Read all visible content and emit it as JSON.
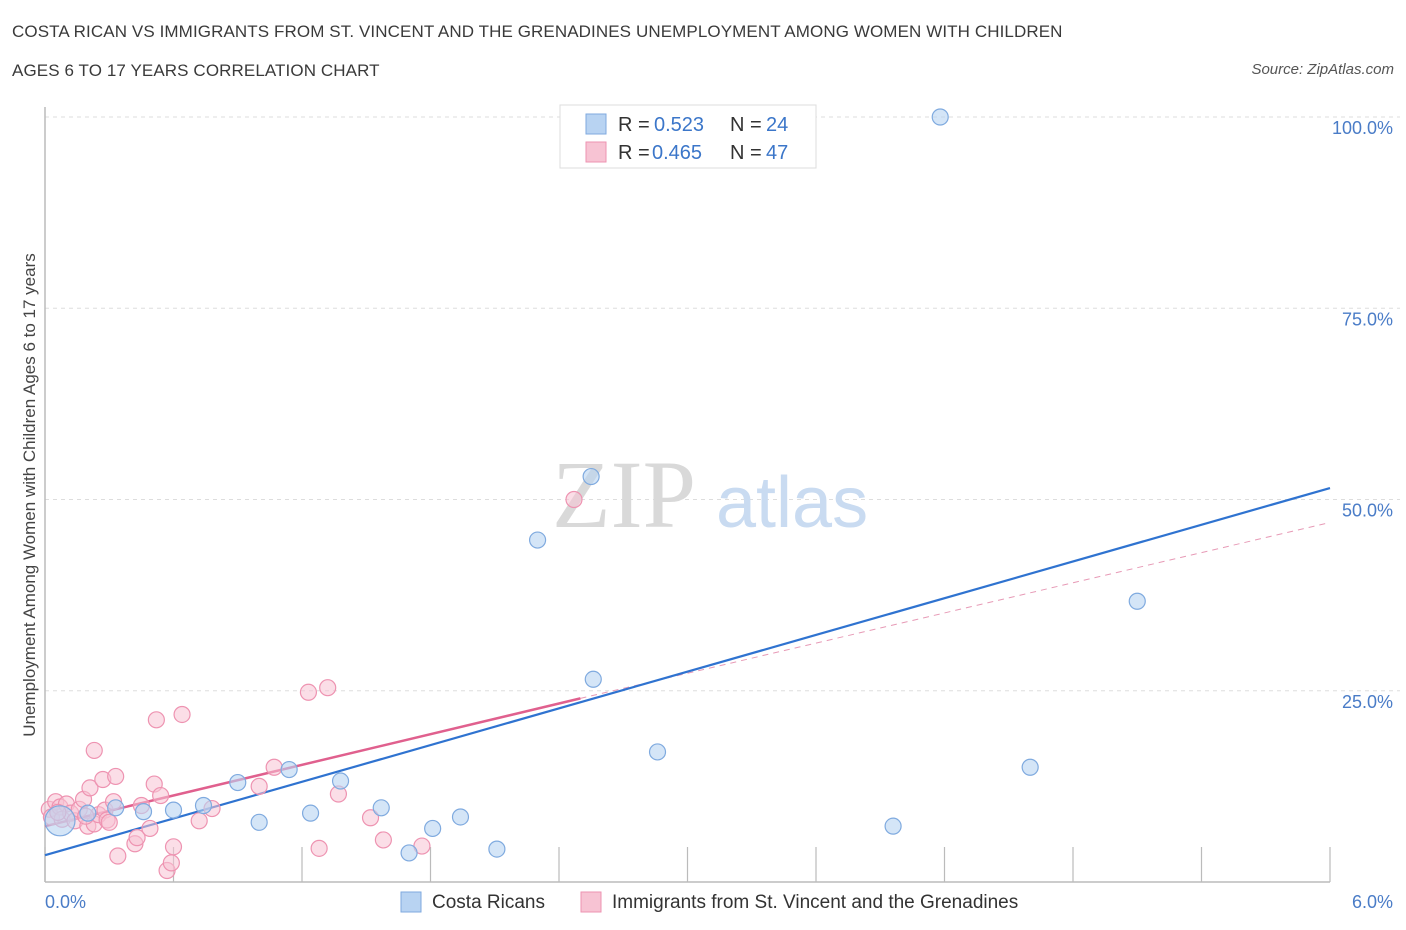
{
  "header": {
    "title_line1": "COSTA RICAN VS IMMIGRANTS FROM ST. VINCENT AND THE GRENADINES UNEMPLOYMENT AMONG WOMEN WITH CHILDREN",
    "title_line2": "AGES 6 TO 17 YEARS CORRELATION CHART",
    "source": "Source: ZipAtlas.com"
  },
  "watermark": {
    "zip": "ZIP",
    "atlas": "atlas"
  },
  "stats_legend": {
    "r_label": "R =",
    "n_label": "N =",
    "rows": [
      {
        "r": "0.523",
        "n": "24"
      },
      {
        "r": "0.465",
        "n": "47"
      }
    ]
  },
  "colors": {
    "blue_fill": "#b8d3f2",
    "blue_stroke": "#7faadf",
    "blue_line": "#2f73d0",
    "pink_fill": "#f7c3d3",
    "pink_stroke": "#ee93b1",
    "pink_line": "#e0608e",
    "grid": "#dddddd",
    "axis": "#bbbbbb"
  },
  "chart_data": {
    "type": "scatter",
    "title": "COSTA RICAN VS IMMIGRANTS FROM ST. VINCENT AND THE GRENADINES UNEMPLOYMENT AMONG WOMEN WITH CHILDREN AGES 6 TO 17 YEARS CORRELATION CHART",
    "xlabel": "",
    "ylabel": "Unemployment Among Women with Children Ages 6 to 17 years",
    "xlim": [
      0,
      6
    ],
    "ylim": [
      0,
      100
    ],
    "x_tick_labels": [
      "0.0%",
      "6.0%"
    ],
    "y_ticks": [
      25,
      50,
      75,
      100
    ],
    "y_tick_labels": [
      "25.0%",
      "50.0%",
      "75.0%",
      "100.0%"
    ],
    "grid": true,
    "legend_position": "bottom",
    "series": [
      {
        "name": "Costa Ricans",
        "color": "#7faadf",
        "r": 0.523,
        "n": 24,
        "trend": {
          "x0": 0,
          "y0": 3.5,
          "x1": 6,
          "y1": 51.5
        },
        "points": [
          {
            "x": 0.07,
            "y": 8,
            "big": true
          },
          {
            "x": 0.2,
            "y": 9
          },
          {
            "x": 0.33,
            "y": 9.7
          },
          {
            "x": 0.46,
            "y": 9.2
          },
          {
            "x": 0.6,
            "y": 9.4
          },
          {
            "x": 0.74,
            "y": 10
          },
          {
            "x": 0.9,
            "y": 13
          },
          {
            "x": 1.0,
            "y": 7.8
          },
          {
            "x": 1.14,
            "y": 14.7
          },
          {
            "x": 1.24,
            "y": 9
          },
          {
            "x": 1.38,
            "y": 13.2
          },
          {
            "x": 1.57,
            "y": 9.7
          },
          {
            "x": 1.7,
            "y": 3.8
          },
          {
            "x": 1.81,
            "y": 7
          },
          {
            "x": 1.94,
            "y": 8.5
          },
          {
            "x": 2.11,
            "y": 4.3
          },
          {
            "x": 2.3,
            "y": 44.7
          },
          {
            "x": 2.55,
            "y": 53
          },
          {
            "x": 2.56,
            "y": 26.5
          },
          {
            "x": 2.86,
            "y": 17
          },
          {
            "x": 3.96,
            "y": 7.3
          },
          {
            "x": 4.18,
            "y": 100
          },
          {
            "x": 4.6,
            "y": 15
          },
          {
            "x": 5.1,
            "y": 36.7
          }
        ]
      },
      {
        "name": "Immigrants from St. Vincent and the Grenadines",
        "color": "#ee93b1",
        "r": 0.465,
        "n": 47,
        "trend": {
          "x0": 0,
          "y0": 7.3,
          "x1": 2.5,
          "y1": 24
        },
        "trend_ext": {
          "x0": 2.5,
          "y0": 24,
          "x1": 6,
          "y1": 47
        },
        "points": [
          {
            "x": 0.02,
            "y": 9.5
          },
          {
            "x": 0.03,
            "y": 8.5
          },
          {
            "x": 0.05,
            "y": 10.5
          },
          {
            "x": 0.07,
            "y": 9.8
          },
          {
            "x": 0.08,
            "y": 8.2
          },
          {
            "x": 0.1,
            "y": 10.2
          },
          {
            "x": 0.12,
            "y": 9
          },
          {
            "x": 0.14,
            "y": 8
          },
          {
            "x": 0.16,
            "y": 9.5
          },
          {
            "x": 0.18,
            "y": 10.8
          },
          {
            "x": 0.2,
            "y": 7.3
          },
          {
            "x": 0.21,
            "y": 12.3
          },
          {
            "x": 0.23,
            "y": 7.6
          },
          {
            "x": 0.25,
            "y": 8.8
          },
          {
            "x": 0.27,
            "y": 13.4
          },
          {
            "x": 0.28,
            "y": 9.4
          },
          {
            "x": 0.29,
            "y": 8.1
          },
          {
            "x": 0.3,
            "y": 7.8
          },
          {
            "x": 0.32,
            "y": 10.5
          },
          {
            "x": 0.23,
            "y": 17.2
          },
          {
            "x": 0.33,
            "y": 13.8
          },
          {
            "x": 0.34,
            "y": 3.4
          },
          {
            "x": 0.42,
            "y": 5
          },
          {
            "x": 0.43,
            "y": 5.8
          },
          {
            "x": 0.45,
            "y": 10
          },
          {
            "x": 0.49,
            "y": 7
          },
          {
            "x": 0.51,
            "y": 12.8
          },
          {
            "x": 0.54,
            "y": 11.3
          },
          {
            "x": 0.52,
            "y": 21.2
          },
          {
            "x": 0.57,
            "y": 1.5
          },
          {
            "x": 0.59,
            "y": 2.5
          },
          {
            "x": 0.6,
            "y": 4.6
          },
          {
            "x": 0.64,
            "y": 21.9
          },
          {
            "x": 0.72,
            "y": 8
          },
          {
            "x": 0.78,
            "y": 9.6
          },
          {
            "x": 1.0,
            "y": 12.5
          },
          {
            "x": 1.07,
            "y": 15
          },
          {
            "x": 1.23,
            "y": 24.8
          },
          {
            "x": 1.28,
            "y": 4.4
          },
          {
            "x": 1.32,
            "y": 25.4
          },
          {
            "x": 1.37,
            "y": 11.5
          },
          {
            "x": 1.52,
            "y": 8.4
          },
          {
            "x": 1.58,
            "y": 5.5
          },
          {
            "x": 1.76,
            "y": 4.7
          },
          {
            "x": 2.47,
            "y": 50
          },
          {
            "x": 0.06,
            "y": 9.1
          },
          {
            "x": 0.19,
            "y": 8.6
          }
        ]
      }
    ]
  }
}
